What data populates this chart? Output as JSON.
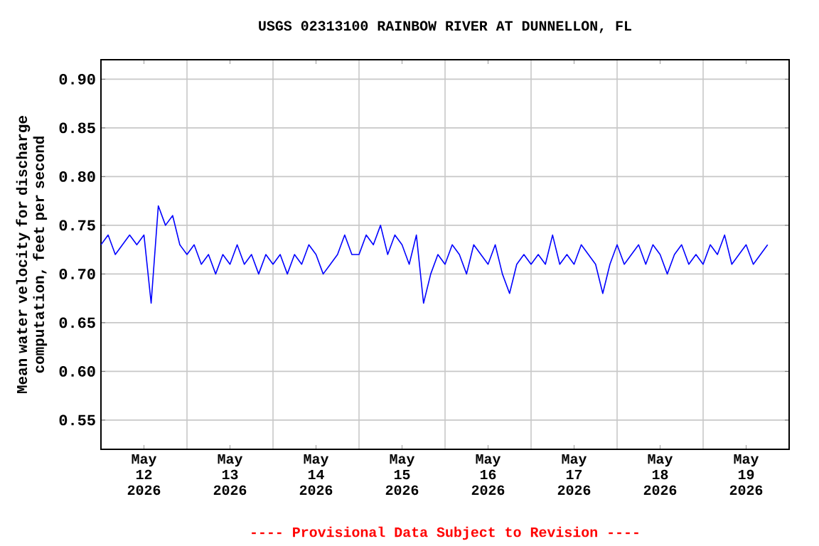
{
  "chart_data": {
    "type": "line",
    "title": "USGS 02313100 RAINBOW RIVER AT DUNNELLON, FL",
    "ylabel": "Mean water velocity for discharge computation, feet per second",
    "annotations": [
      "---- Provisional Data Subject to Revision ----"
    ],
    "color": "#0000ff",
    "grid": true,
    "xlim": [
      "2026-05-12T00:00",
      "2026-05-20T00:00"
    ],
    "ylim": [
      0.52,
      0.92
    ],
    "yticks": [
      {
        "value": 0.55,
        "label": "0.55"
      },
      {
        "value": 0.6,
        "label": "0.60"
      },
      {
        "value": 0.65,
        "label": "0.65"
      },
      {
        "value": 0.7,
        "label": "0.70"
      },
      {
        "value": 0.75,
        "label": "0.75"
      },
      {
        "value": 0.8,
        "label": "0.80"
      },
      {
        "value": 0.85,
        "label": "0.85"
      },
      {
        "value": 0.9,
        "label": "0.90"
      }
    ],
    "xticks": [
      {
        "value": "2026-05-12T12:00",
        "label": "May 12 2026"
      },
      {
        "value": "2026-05-13T12:00",
        "label": "May 13 2026"
      },
      {
        "value": "2026-05-14T12:00",
        "label": "May 14 2026"
      },
      {
        "value": "2026-05-15T12:00",
        "label": "May 15 2026"
      },
      {
        "value": "2026-05-16T12:00",
        "label": "May 16 2026"
      },
      {
        "value": "2026-05-17T12:00",
        "label": "May 17 2026"
      },
      {
        "value": "2026-05-18T12:00",
        "label": "May 18 2026"
      },
      {
        "value": "2026-05-19T12:00",
        "label": "May 19 2026"
      },
      {
        "value": "2026-05-13T00:00",
        "label": null
      },
      {
        "value": "2026-05-14T00:00",
        "label": null
      },
      {
        "value": "2026-05-15T00:00",
        "label": null
      },
      {
        "value": "2026-05-16T00:00",
        "label": null
      },
      {
        "value": "2026-05-17T00:00",
        "label": null
      },
      {
        "value": "2026-05-18T00:00",
        "label": null
      },
      {
        "value": "2026-05-19T00:00",
        "label": null
      }
    ],
    "x": [
      "2026-05-12T00:00",
      "2026-05-12T02:00",
      "2026-05-12T04:00",
      "2026-05-12T06:00",
      "2026-05-12T08:00",
      "2026-05-12T10:00",
      "2026-05-12T12:00",
      "2026-05-12T14:00",
      "2026-05-12T16:00",
      "2026-05-12T18:00",
      "2026-05-12T20:00",
      "2026-05-12T22:00",
      "2026-05-13T00:00",
      "2026-05-13T02:00",
      "2026-05-13T04:00",
      "2026-05-13T06:00",
      "2026-05-13T08:00",
      "2026-05-13T10:00",
      "2026-05-13T12:00",
      "2026-05-13T14:00",
      "2026-05-13T16:00",
      "2026-05-13T18:00",
      "2026-05-13T20:00",
      "2026-05-13T22:00",
      "2026-05-14T00:00",
      "2026-05-14T02:00",
      "2026-05-14T04:00",
      "2026-05-14T06:00",
      "2026-05-14T08:00",
      "2026-05-14T10:00",
      "2026-05-14T12:00",
      "2026-05-14T14:00",
      "2026-05-14T16:00",
      "2026-05-14T18:00",
      "2026-05-14T20:00",
      "2026-05-14T22:00",
      "2026-05-15T00:00",
      "2026-05-15T02:00",
      "2026-05-15T04:00",
      "2026-05-15T06:00",
      "2026-05-15T08:00",
      "2026-05-15T10:00",
      "2026-05-15T12:00",
      "2026-05-15T14:00",
      "2026-05-15T16:00",
      "2026-05-15T18:00",
      "2026-05-15T20:00",
      "2026-05-15T22:00",
      "2026-05-16T00:00",
      "2026-05-16T02:00",
      "2026-05-16T04:00",
      "2026-05-16T06:00",
      "2026-05-16T08:00",
      "2026-05-16T10:00",
      "2026-05-16T12:00",
      "2026-05-16T14:00",
      "2026-05-16T16:00",
      "2026-05-16T18:00",
      "2026-05-16T20:00",
      "2026-05-16T22:00",
      "2026-05-17T00:00",
      "2026-05-17T02:00",
      "2026-05-17T04:00",
      "2026-05-17T06:00",
      "2026-05-17T08:00",
      "2026-05-17T10:00",
      "2026-05-17T12:00",
      "2026-05-17T14:00",
      "2026-05-17T16:00",
      "2026-05-17T18:00",
      "2026-05-17T20:00",
      "2026-05-17T22:00",
      "2026-05-18T00:00",
      "2026-05-18T02:00",
      "2026-05-18T04:00",
      "2026-05-18T06:00",
      "2026-05-18T08:00",
      "2026-05-18T10:00",
      "2026-05-18T12:00",
      "2026-05-18T14:00",
      "2026-05-18T16:00",
      "2026-05-18T18:00",
      "2026-05-18T20:00",
      "2026-05-18T22:00",
      "2026-05-19T00:00",
      "2026-05-19T02:00",
      "2026-05-19T04:00",
      "2026-05-19T06:00",
      "2026-05-19T08:00",
      "2026-05-19T10:00",
      "2026-05-19T12:00",
      "2026-05-19T14:00",
      "2026-05-19T16:00",
      "2026-05-19T18:00"
    ],
    "values": [
      0.73,
      0.74,
      0.72,
      0.73,
      0.74,
      0.73,
      0.74,
      0.67,
      0.77,
      0.75,
      0.76,
      0.73,
      0.72,
      0.73,
      0.71,
      0.72,
      0.7,
      0.72,
      0.71,
      0.73,
      0.71,
      0.72,
      0.7,
      0.72,
      0.71,
      0.72,
      0.7,
      0.72,
      0.71,
      0.73,
      0.72,
      0.7,
      0.71,
      0.72,
      0.74,
      0.72,
      0.72,
      0.74,
      0.73,
      0.75,
      0.72,
      0.74,
      0.73,
      0.71,
      0.74,
      0.67,
      0.7,
      0.72,
      0.71,
      0.73,
      0.72,
      0.7,
      0.73,
      0.72,
      0.71,
      0.73,
      0.7,
      0.68,
      0.71,
      0.72,
      0.71,
      0.72,
      0.71,
      0.74,
      0.71,
      0.72,
      0.71,
      0.73,
      0.72,
      0.71,
      0.68,
      0.71,
      0.73,
      0.71,
      0.72,
      0.73,
      0.71,
      0.73,
      0.72,
      0.7,
      0.72,
      0.73,
      0.71,
      0.72,
      0.71,
      0.73,
      0.72,
      0.74,
      0.71,
      0.72,
      0.73,
      0.71,
      0.72,
      0.73
    ]
  }
}
